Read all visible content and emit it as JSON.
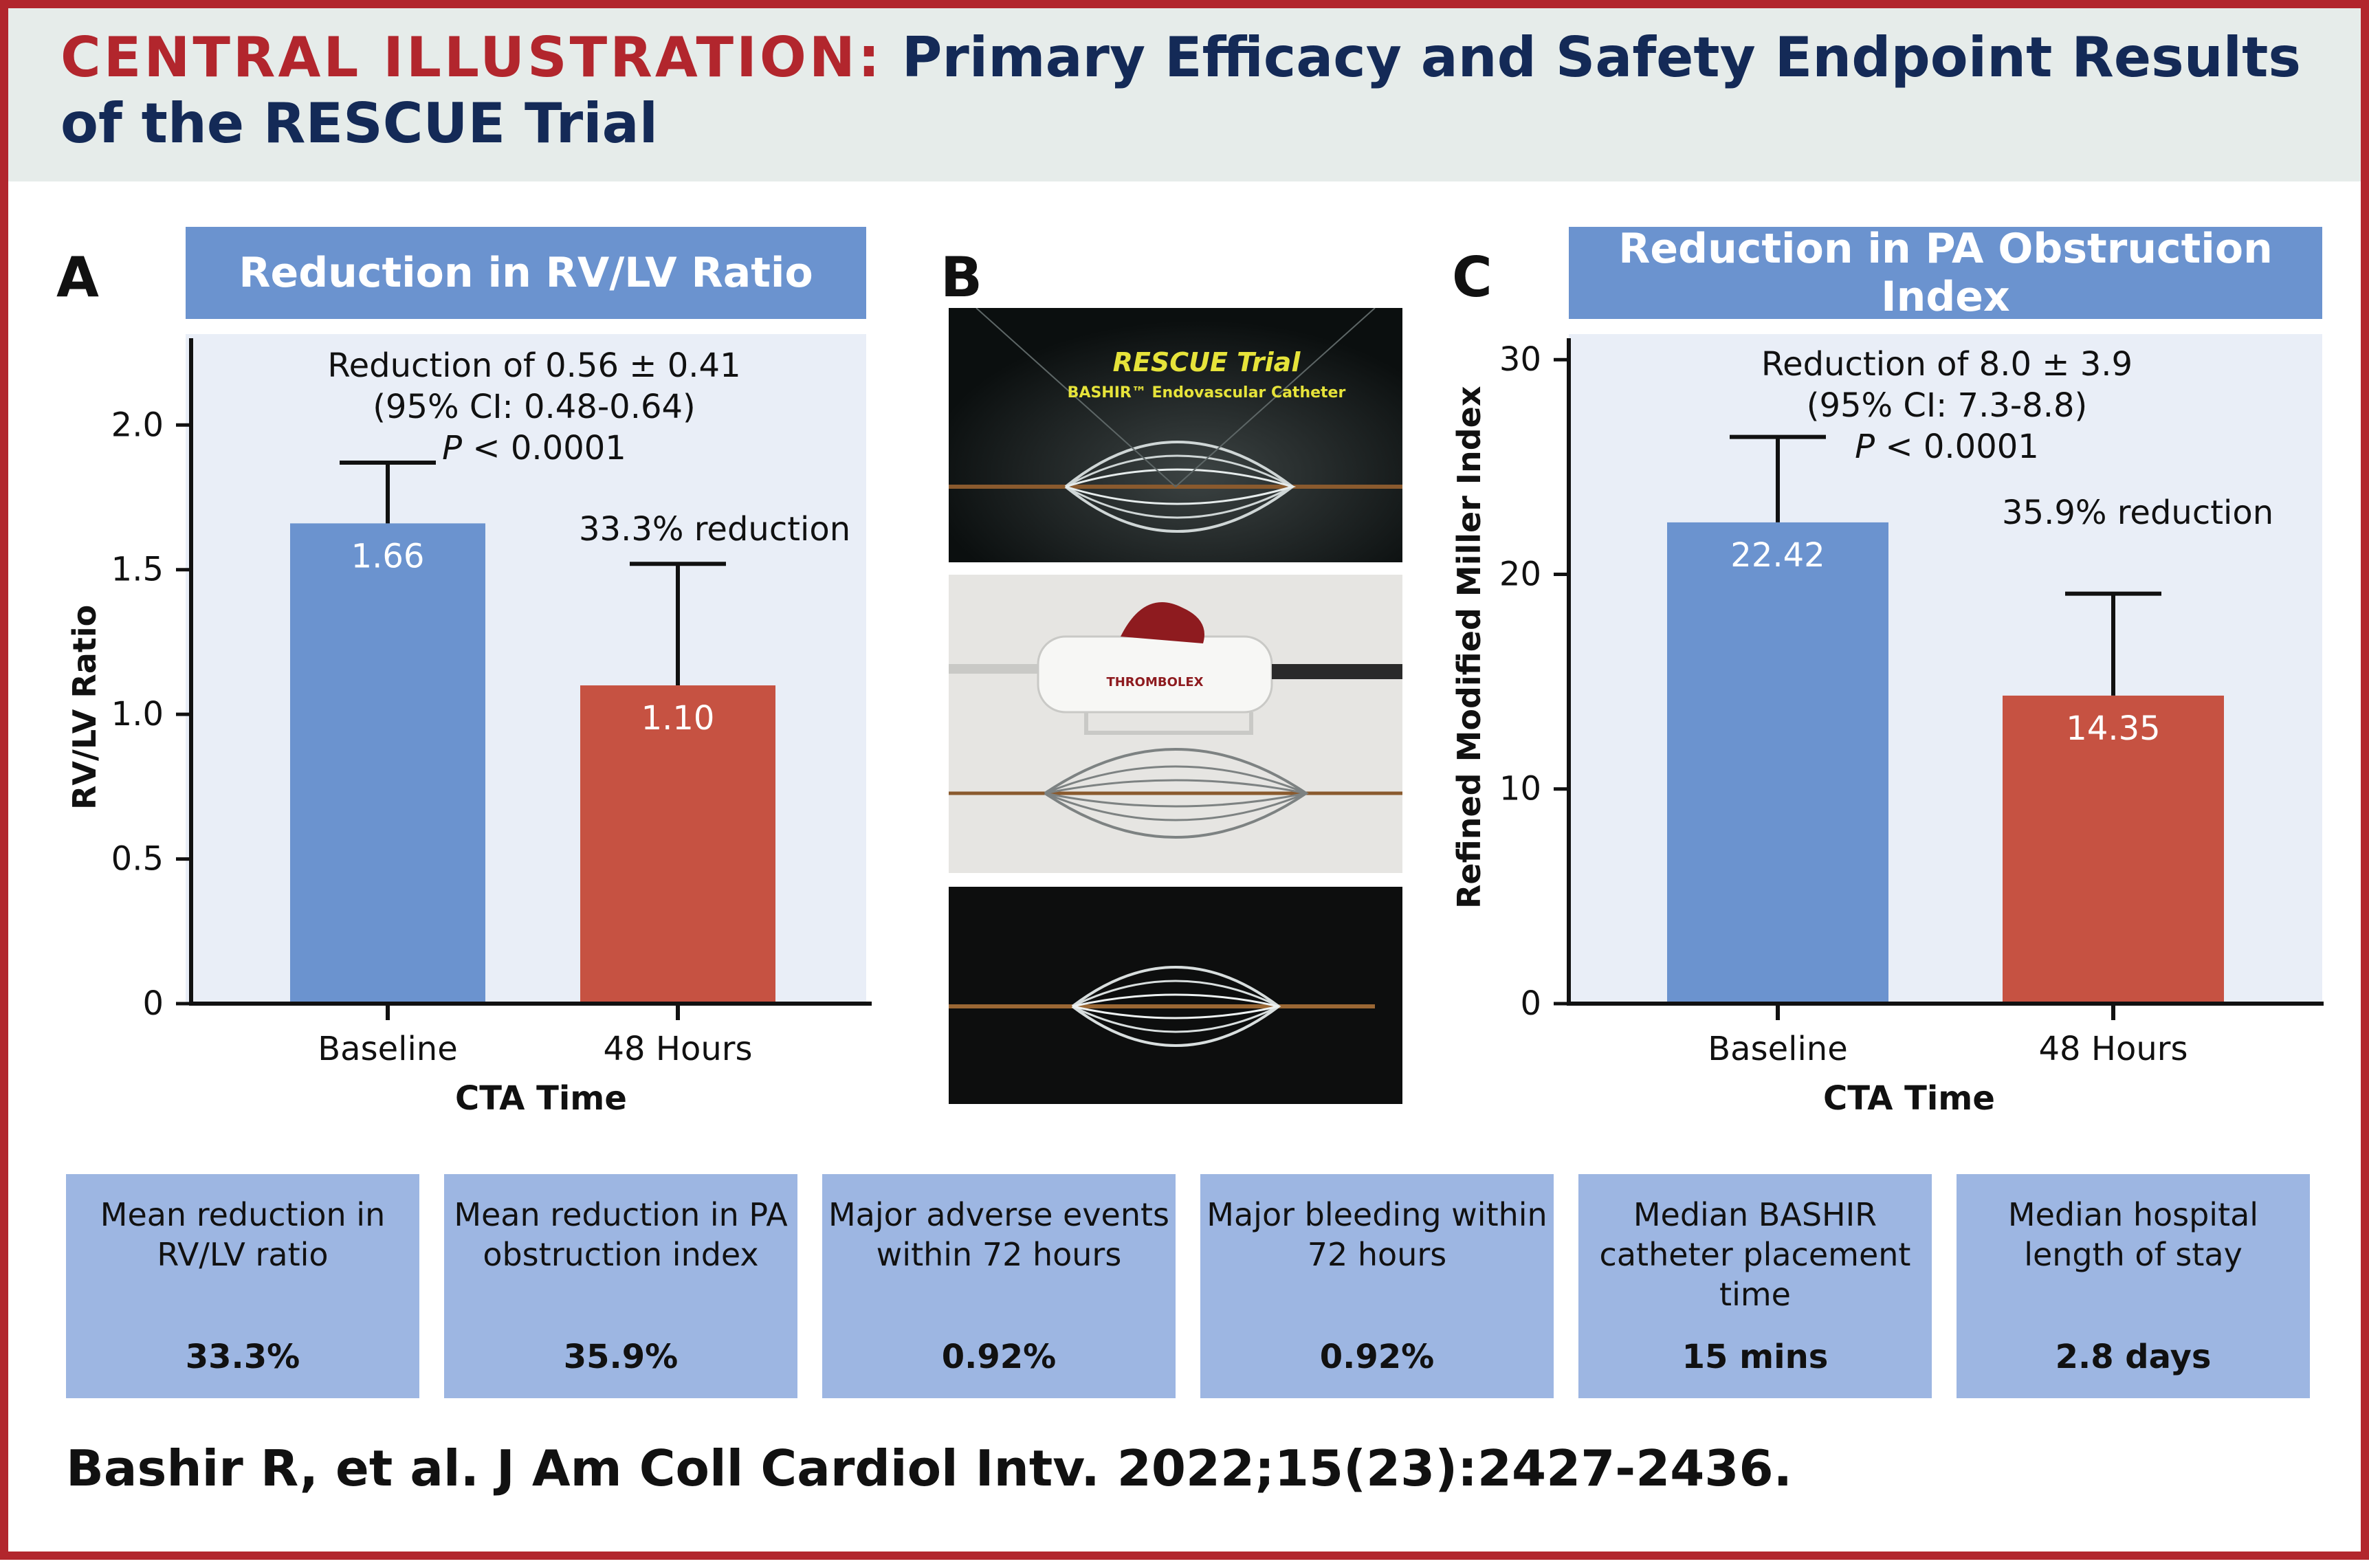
{
  "header": {
    "prefix": "CENTRAL ILLUSTRATION:",
    "title": " Primary Efficacy and Safety Endpoint Results of the RESCUE Trial"
  },
  "panels": {
    "A": {
      "letter": "A",
      "banner": "Reduction in RV/LV Ratio",
      "annotation_line1": "Reduction of 0.56 ± 0.41",
      "annotation_line2": "(95% CI: 0.48-0.64)",
      "annotation_p": "P",
      "annotation_p_rest": " < 0.0001",
      "reduction_note": "33.3% reduction"
    },
    "B": {
      "letter": "B",
      "photo_top_title": "RESCUE Trial",
      "photo_top_subtitle": "BASHIR™ Endovascular Catheter",
      "photo_mid_brand": "THROMBOLEX"
    },
    "C": {
      "letter": "C",
      "banner": "Reduction in PA Obstruction Index",
      "annotation_line1": "Reduction of 8.0 ± 3.9",
      "annotation_line2": "(95% CI: 7.3-8.8)",
      "annotation_p": "P",
      "annotation_p_rest": " < 0.0001",
      "reduction_note": "35.9% reduction"
    }
  },
  "chart_data": [
    {
      "type": "bar",
      "title": "Reduction in RV/LV Ratio",
      "xlabel": "CTA Time",
      "ylabel": "RV/LV Ratio",
      "categories": [
        "Baseline",
        "48 Hours"
      ],
      "values": [
        1.66,
        1.1
      ],
      "value_labels": [
        "1.66",
        "1.10"
      ],
      "error_upper": [
        1.87,
        1.52
      ],
      "ylim": [
        0,
        2.3
      ],
      "yticks": [
        0,
        0.5,
        1.0,
        1.5,
        2.0
      ],
      "ytick_labels": [
        "0",
        "0.5",
        "1.0",
        "1.5",
        "2.0"
      ],
      "colors": [
        "#6b93cf",
        "#c65242"
      ],
      "grid": false
    },
    {
      "type": "bar",
      "title": "Reduction in PA Obstruction Index",
      "xlabel": "CTA Time",
      "ylabel": "Refined Modified Miller Index",
      "categories": [
        "Baseline",
        "48 Hours"
      ],
      "values": [
        22.42,
        14.35
      ],
      "value_labels": [
        "22.42",
        "14.35"
      ],
      "error_upper": [
        26.4,
        19.1
      ],
      "ylim": [
        0,
        31
      ],
      "yticks": [
        0,
        10,
        20,
        30
      ],
      "ytick_labels": [
        "0",
        "10",
        "20",
        "30"
      ],
      "colors": [
        "#6b93cf",
        "#c65242"
      ],
      "grid": false
    }
  ],
  "stats": [
    {
      "label": "Mean reduction in RV/LV ratio",
      "value": "33.3%"
    },
    {
      "label": "Mean reduction in PA obstruction index",
      "value": "35.9%"
    },
    {
      "label": "Major adverse events within 72 hours",
      "value": "0.92%"
    },
    {
      "label": "Major bleeding within 72 hours",
      "value": "0.92%"
    },
    {
      "label": "Median BASHIR catheter placement time",
      "value": "15 mins"
    },
    {
      "label": "Median hospital length of stay",
      "value": "2.8 days"
    }
  ],
  "citation": "Bashir R, et al. J Am Coll Cardiol Intv. 2022;15(23):2427-2436."
}
